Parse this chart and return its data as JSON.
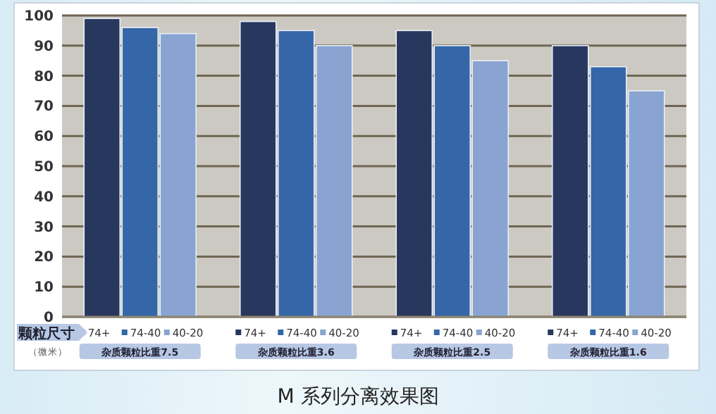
{
  "chart_data": {
    "type": "bar",
    "title": "M 系列分离效果图",
    "legend_title": "颗粒尺寸",
    "annotations": [
      "（微米）"
    ],
    "categories": [
      "杂质颗粒比重7.5",
      "杂质颗粒比重3.6",
      "杂质颗粒比重2.5",
      "杂质颗粒比重1.6"
    ],
    "series": [
      {
        "name": "74+",
        "color": "#27375e",
        "values": [
          99,
          98,
          95,
          90
        ]
      },
      {
        "name": "74-40",
        "color": "#3566a8",
        "values": [
          96,
          95,
          90,
          83
        ]
      },
      {
        "name": "40-20",
        "color": "#8aa4d2",
        "values": [
          94,
          90,
          85,
          75
        ]
      }
    ],
    "ylim": [
      0,
      100
    ],
    "yticks": [
      0,
      10,
      20,
      30,
      40,
      50,
      60,
      70,
      80,
      90,
      100
    ],
    "grid": "y",
    "legend": "bottom"
  }
}
